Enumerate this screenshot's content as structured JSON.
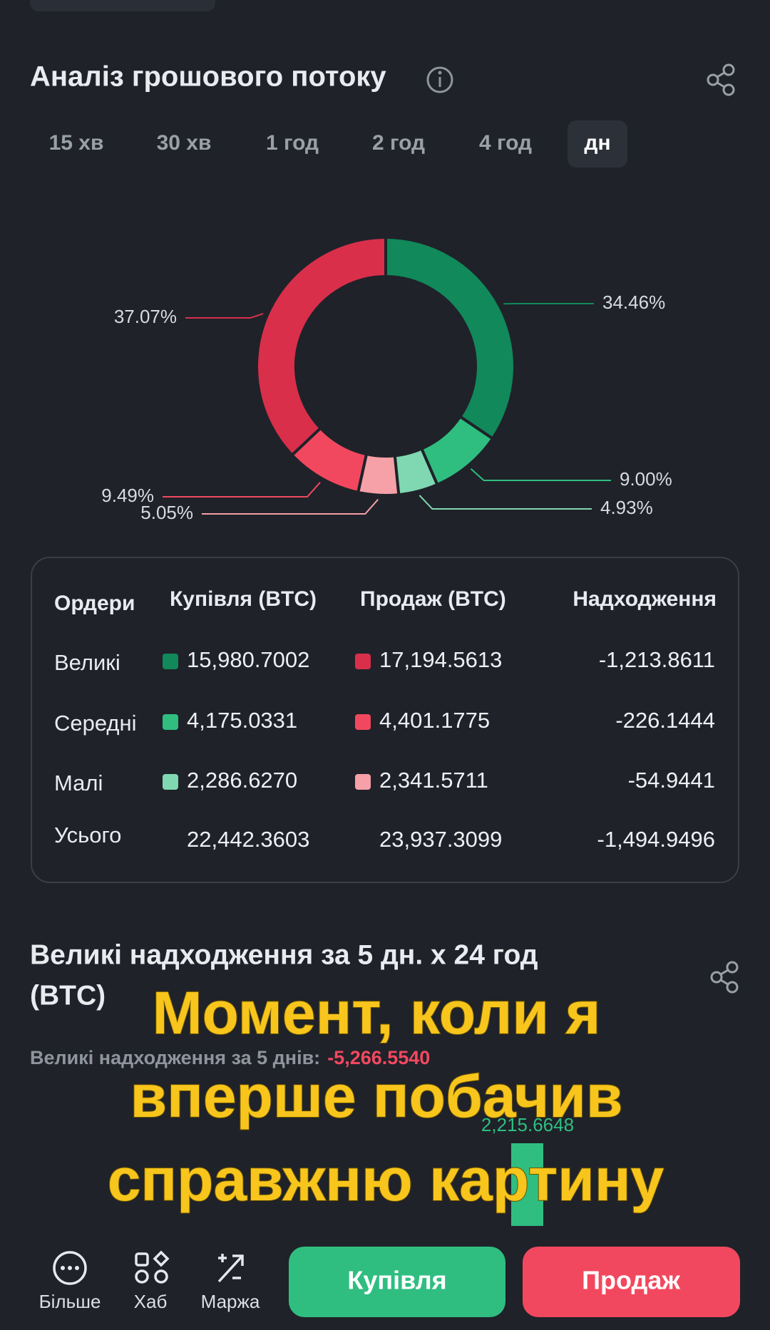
{
  "header": {
    "title": "Аналіз грошового потоку"
  },
  "tabs": [
    "15 хв",
    "30 хв",
    "1 год",
    "2 год",
    "4 год",
    "дн"
  ],
  "active_tab": 5,
  "chart_data": {
    "type": "pie",
    "donut": true,
    "values": [
      34.46,
      9.0,
      4.93,
      5.05,
      9.49,
      37.07
    ],
    "value_labels": [
      "34.46%",
      "9.00%",
      "4.93%",
      "5.05%",
      "9.49%",
      "37.07%"
    ],
    "colors": [
      "#11895a",
      "#2fbe80",
      "#7fd8b1",
      "#f6a0a8",
      "#f2485f",
      "#d92f4b"
    ]
  },
  "table": {
    "header": [
      "Ордери",
      "Купівля (BTC)",
      "Продаж (BTC)",
      "Надходження"
    ],
    "rows": [
      [
        "Великі",
        "15,980.7002",
        "17,194.5613",
        "-1,213.8611"
      ],
      [
        "Середні",
        "4,175.0331",
        "4,401.1775",
        "-226.1444"
      ],
      [
        "Малі",
        "2,286.6270",
        "2,341.5711",
        "-54.9441"
      ],
      [
        "Усього",
        "22,442.3603",
        "23,937.3099",
        "-1,494.9496"
      ]
    ]
  },
  "section": {
    "title_lines": [
      "Великі надходження за 5 дн. х 24 год",
      "(BTC)"
    ],
    "summary_label": "Великі надходження за 5 днів:",
    "summary_value": "-5,266.5540",
    "bar_label": "2,215.6648"
  },
  "caption_lines": [
    "Момент, коли я",
    "вперше побачив",
    "справжню картину"
  ],
  "nav": [
    "Більше",
    "Хаб",
    "Маржа"
  ],
  "buttons": {
    "buy": "Купівля",
    "sell": "Продаж"
  }
}
